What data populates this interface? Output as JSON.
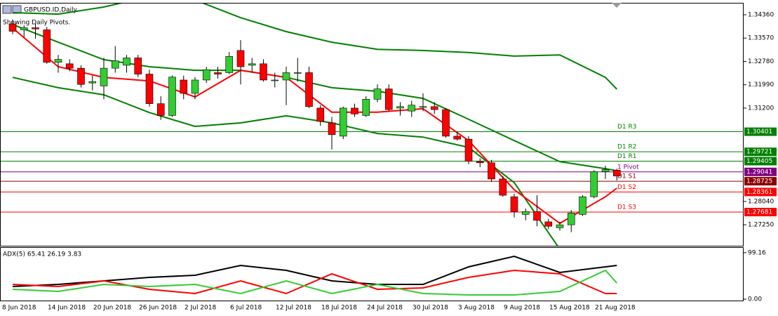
{
  "chart_data": [
    {
      "type": "candlestick",
      "title": "GBPUSD.ID,Daily",
      "subtitle": "Showing Daily Pivots.",
      "categories": [
        "8 Jun 2018",
        null,
        null,
        null,
        "14 Jun 2018",
        null,
        null,
        null,
        "20 Jun 2018",
        null,
        null,
        null,
        "26 Jun 2018",
        null,
        null,
        null,
        "2 Jul 2018",
        null,
        null,
        null,
        "6 Jul 2018",
        null,
        null,
        null,
        "12 Jul 2018",
        null,
        null,
        null,
        "18 Jul 2018",
        null,
        null,
        null,
        "24 Jul 2018",
        null,
        null,
        null,
        "30 Jul 2018",
        null,
        null,
        null,
        "3 Aug 2018",
        null,
        null,
        null,
        "9 Aug 2018",
        null,
        null,
        null,
        "15 Aug 2018",
        null,
        null,
        null,
        "21 Aug 2018",
        null
      ],
      "open": [
        1.3405,
        1.3385,
        1.3392,
        1.3385,
        1.3275,
        1.327,
        1.3255,
        1.3205,
        1.3195,
        1.3255,
        1.3265,
        1.329,
        1.3235,
        1.3135,
        1.3095,
        1.3215,
        1.317,
        1.3215,
        1.324,
        1.324,
        1.3315,
        1.3265,
        1.327,
        1.3215,
        1.3215,
        1.324,
        1.324,
        1.312,
        1.307,
        1.3025,
        1.312,
        1.3095,
        1.315,
        1.3185,
        1.312,
        1.311,
        1.3125,
        1.3125,
        1.3115,
        1.3025,
        1.3015,
        1.294,
        1.2935,
        1.288,
        1.282,
        1.276,
        1.277,
        1.2735,
        1.2715,
        1.2725,
        1.276,
        1.282,
        1.2905,
        1.291
      ],
      "high": [
        1.342,
        1.34,
        1.3405,
        1.3395,
        1.33,
        1.3285,
        1.3265,
        1.323,
        1.329,
        1.333,
        1.33,
        1.33,
        1.325,
        1.316,
        1.323,
        1.323,
        1.3225,
        1.326,
        1.326,
        1.331,
        1.335,
        1.329,
        1.3285,
        1.324,
        1.326,
        1.329,
        1.326,
        1.313,
        1.309,
        1.3125,
        1.3135,
        1.316,
        1.32,
        1.32,
        1.314,
        1.3145,
        1.317,
        1.314,
        1.312,
        1.304,
        1.3025,
        1.295,
        1.2945,
        1.289,
        1.283,
        1.278,
        1.2825,
        1.2745,
        1.2735,
        1.2775,
        1.2825,
        1.291,
        1.2925,
        1.2915
      ],
      "low": [
        1.337,
        1.336,
        1.3355,
        1.327,
        1.324,
        1.3245,
        1.319,
        1.318,
        1.315,
        1.324,
        1.324,
        1.3225,
        1.3125,
        1.308,
        1.309,
        1.315,
        1.315,
        1.3205,
        1.322,
        1.3235,
        1.32,
        1.324,
        1.321,
        1.319,
        1.313,
        1.321,
        1.312,
        1.306,
        1.298,
        1.3015,
        1.309,
        1.309,
        1.314,
        1.311,
        1.3095,
        1.309,
        1.311,
        1.31,
        1.302,
        1.301,
        1.293,
        1.292,
        1.287,
        1.282,
        1.275,
        1.274,
        1.272,
        1.271,
        1.2705,
        1.27,
        1.2755,
        1.2815,
        1.288,
        1.2875
      ],
      "close": [
        1.338,
        1.3392,
        1.3388,
        1.3275,
        1.3285,
        1.3255,
        1.32,
        1.321,
        1.3255,
        1.328,
        1.329,
        1.3235,
        1.3135,
        1.3095,
        1.3225,
        1.317,
        1.3215,
        1.325,
        1.3235,
        1.3295,
        1.326,
        1.327,
        1.3215,
        1.3215,
        1.324,
        1.324,
        1.3125,
        1.3075,
        1.303,
        1.312,
        1.31,
        1.315,
        1.3185,
        1.3115,
        1.3125,
        1.313,
        1.3125,
        1.3115,
        1.3025,
        1.3015,
        1.294,
        1.2935,
        1.288,
        1.2825,
        1.277,
        1.277,
        1.274,
        1.272,
        1.2725,
        1.2765,
        1.282,
        1.2905,
        1.2912,
        1.289
      ],
      "up_color": "#32cd32",
      "down_color": "#ff0000",
      "overlays": [
        {
          "x": [
            0,
            4,
            8,
            12,
            16,
            20,
            24,
            28,
            32,
            36,
            40,
            44,
            48,
            52,
            53
          ],
          "color": "#008000",
          "values": [
            1.3443,
            1.3438,
            1.3462,
            1.3498,
            1.3486,
            1.3426,
            1.3379,
            1.3343,
            1.3319,
            1.3315,
            1.3308,
            1.3296,
            1.33,
            1.3224,
            1.3184
          ]
        },
        {
          "x": [
            0,
            4,
            8,
            12,
            16,
            20,
            24,
            28,
            32,
            36,
            40,
            44,
            48,
            52,
            53
          ],
          "color": "#008000",
          "values": [
            1.3403,
            1.3343,
            1.3284,
            1.326,
            1.3248,
            1.3248,
            1.3224,
            1.3189,
            1.3177,
            1.3153,
            1.3082,
            1.301,
            1.2939,
            1.2915,
            1.2908
          ]
        },
        {
          "x": [
            0,
            4,
            8,
            12,
            16,
            20,
            24,
            28,
            32,
            36,
            40,
            44,
            48,
            52,
            53
          ],
          "color": "#008000",
          "values": [
            1.3224,
            1.3189,
            1.3165,
            1.3105,
            1.3058,
            1.307,
            1.3094,
            1.307,
            1.3034,
            1.3022,
            1.2987,
            1.2868,
            1.2642,
            null,
            null
          ]
        },
        {
          "x": [
            0,
            4,
            8,
            12,
            16,
            20,
            24,
            28,
            32,
            36,
            40,
            44,
            48,
            52,
            53
          ],
          "color": "#ff0000",
          "values": [
            1.3391,
            1.326,
            1.3224,
            1.3212,
            1.3158,
            1.3248,
            1.3224,
            1.3106,
            1.3106,
            1.3118,
            1.301,
            1.2844,
            1.273,
            1.282,
            1.2849
          ]
        }
      ],
      "levels": [
        {
          "name": "D1 R3",
          "value": 1.30401,
          "color": "#008000"
        },
        {
          "name": "D1 R2",
          "value": 1.29721,
          "color": "#008000"
        },
        {
          "name": "D1 R1",
          "value": 1.29405,
          "color": "#008000"
        },
        {
          "name": "1 Pivot",
          "value": 1.29041,
          "color": "#800080"
        },
        {
          "name": "D1 S1",
          "value": 1.28725,
          "color": "#8b0000"
        },
        {
          "name": "D1 S2",
          "value": 1.28361,
          "color": "#ff0000"
        },
        {
          "name": "D1 S3",
          "value": 1.27681,
          "color": "#ff0000"
        }
      ],
      "ylim": [
        1.2654,
        1.3474
      ],
      "yticks": [
        {
          "value": 1.3436,
          "label": "1.34360"
        },
        {
          "value": 1.3357,
          "label": "1.33570"
        },
        {
          "value": 1.3278,
          "label": "1.32780"
        },
        {
          "value": 1.3199,
          "label": "1.31990"
        },
        {
          "value": 1.312,
          "label": "1.31200"
        },
        {
          "value": 1.2804,
          "label": "1.28040"
        },
        {
          "value": 1.2725,
          "label": "1.27250"
        }
      ]
    },
    {
      "type": "line",
      "title": "ADX(5) 65.41 26.19 3.83",
      "x": [
        0,
        4,
        8,
        12,
        16,
        20,
        24,
        28,
        32,
        36,
        40,
        44,
        48,
        52,
        53
      ],
      "series": [
        {
          "color": "#000000",
          "values": [
            27,
            31.5,
            39,
            46.5,
            51,
            72,
            61.5,
            39,
            31.5,
            31.5,
            69,
            91.5,
            57,
            69,
            72
          ]
        },
        {
          "color": "#ff0000",
          "values": [
            31.5,
            27,
            39,
            21,
            12,
            39,
            12,
            54,
            21,
            24,
            46.5,
            61.5,
            54,
            12,
            12
          ]
        },
        {
          "color": "#32cd32",
          "values": [
            21,
            16.5,
            31.5,
            27,
            31.5,
            12,
            39,
            12,
            31.5,
            12,
            9,
            9,
            16.5,
            61.5,
            34.5
          ]
        }
      ],
      "ylim": [
        0,
        111
      ],
      "yticks": [
        99.16,
        {
          "value": 0,
          "label": "0.00"
        }
      ]
    }
  ]
}
